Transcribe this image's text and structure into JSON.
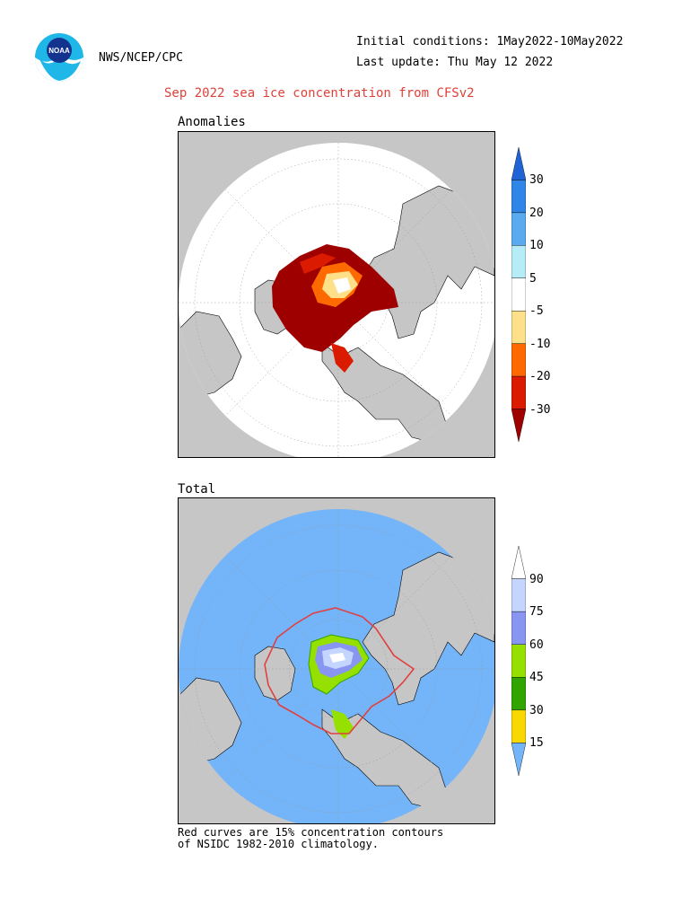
{
  "header": {
    "source": "NWS/NCEP/CPC",
    "initial_conditions": "Initial conditions: 1May2022-10May2022",
    "last_update": "Last update: Thu May 12 2022",
    "title": "Sep 2022 sea ice concentration from CFSv2"
  },
  "logo": {
    "text": "NOAA"
  },
  "anomalies_panel": {
    "label": "Anomalies",
    "colorbar": {
      "labels": [
        "30",
        "20",
        "10",
        "5",
        "-5",
        "-10",
        "-20",
        "-30"
      ],
      "colors": [
        "#1f63d6",
        "#2f86e6",
        "#5aaaf0",
        "#b6ecf7",
        "#ffffff",
        "#ffe08a",
        "#ff6a00",
        "#db1b00",
        "#9e0000"
      ]
    }
  },
  "total_panel": {
    "label": "Total",
    "colorbar": {
      "labels": [
        "90",
        "75",
        "60",
        "45",
        "30",
        "15"
      ],
      "colors": [
        "#ffffff",
        "#c4d6ff",
        "#8896f2",
        "#96e000",
        "#32a400",
        "#f8d800",
        "#74b4f8"
      ]
    }
  },
  "footnote": {
    "line1": "Red curves are 15% concentration contours",
    "line2": "of NSIDC 1982-2010 climatology."
  }
}
